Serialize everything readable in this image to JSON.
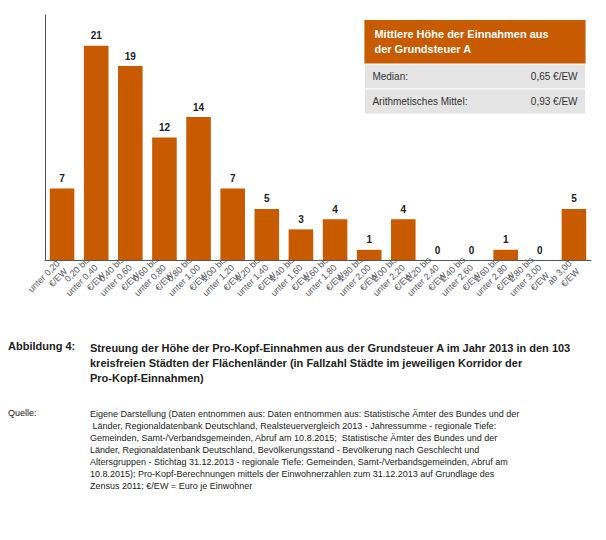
{
  "chart_data": {
    "type": "bar",
    "categories": [
      "unter 0,20\n€/EW",
      "0,20 bis\nunter 0,40\n€/EW",
      "0,40 bis\nunter 0,60\n€/EW",
      "0,60 bis\nunter 0,80\n€/EW",
      "0,80 bis\nunter 1,00\n€/EW",
      "1,00 bis\nunter 1,20\n€/EW",
      "1,20 bis\nunter 1,40\n€/EW",
      "1,40 bis\nunter 1,60\n€/EW",
      "1,60 bis\nunter 1,80\n€/EW",
      "1,80 bis\nunter 2,00\n€/EW",
      "2,00 bis\nunter 2,20\n€/EW",
      "2,20 bis\nunter 2,40\n€/EW",
      "2,40 bis\nunter 2,60\n€/EW",
      "2,60 bis\nunter 2,80\n€/EW",
      "2,80 bis\nunter 3,00\n€/EW",
      "ab 3,00\n€/EW"
    ],
    "values": [
      7,
      21,
      19,
      12,
      14,
      7,
      5,
      3,
      4,
      1,
      4,
      0,
      0,
      1,
      0,
      5
    ],
    "color": "#C85A00",
    "ylim": [
      0,
      24
    ],
    "tick_labels": "x",
    "grid": false,
    "data_labels": true,
    "annotations": {
      "box_title": [
        "Mittlere Höhe der Einnahmen aus",
        "der Grundsteuer A"
      ],
      "box_rows": [
        [
          "Median:",
          "0,65 €/EW"
        ],
        [
          "Arithmetisches Mittel:",
          "0,93 €/EW"
        ]
      ],
      "caption_label": "Abbildung 4:",
      "caption": "Streuung der Höhe der Pro-Kopf-Einnahmen aus der Grundsteuer A im Jahr 2013 in den 103 kreisfreien Städten der Flächenländer (in Fallzahl Städte im jeweiligen Korridor der Pro-Kopf-Einnahmen)",
      "source_label": "Quelle:",
      "source": "Eigene Darstellung (Daten entnommen aus: Daten entnommen aus: Statistische Ämter des Bundes und der Länder, Regionaldatenbank Deutschland, Realsteuervergleich 2013 - Jahressumme - regionale Tiefe: Gemeinden, Samt-/Verbandsgemeinden, Abruf am 10.8.2015;  Statistische Ämter des Bundes und der Länder, Regionaldatenbank Deutschland, Bevölkerungsstand - Bevölkerung nach Geschlecht und Altersgruppen - Stichtag 31.12.2013 - regionale Tiefe: Gemeinden, Samt-/Verbandsgemeinden, Abruf am 10.8.2015); Pro-Kopf-Berechnungen mittels der Einwohnerzahlen zum 31.12.2013 auf Grundlage des Zensus 2011; €/EW = Euro je Einwohner"
    }
  }
}
